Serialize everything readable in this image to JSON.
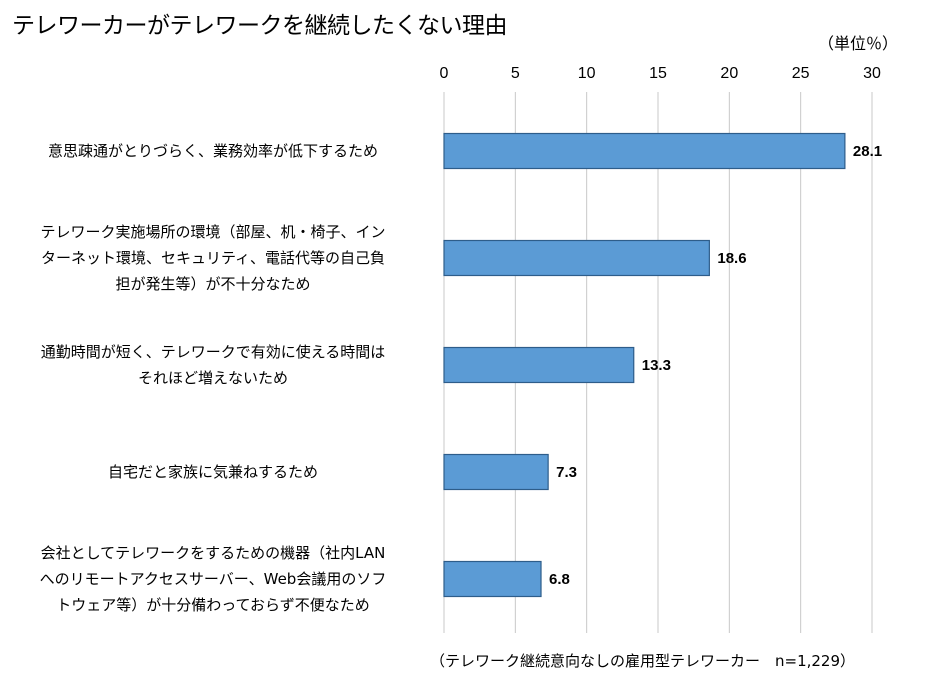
{
  "chart_data": {
    "type": "bar",
    "orientation": "horizontal",
    "title": "テレワーカーがテレワークを継続したくない理由",
    "unit_label": "（単位％）",
    "note": "（テレワーク継続意向なしの雇用型テレワーカー　n=1,229）",
    "xlim": [
      0,
      30
    ],
    "xticks": [
      "0",
      "5",
      "10",
      "15",
      "20",
      "25",
      "30"
    ],
    "grid": true,
    "bar_color": "#5B9BD5",
    "bar_border_color": "#2E5D8A",
    "categories": [
      "意思疎通がとりづらく、業務効率が低下するため",
      "テレワーク実施場所の環境（部屋、机・椅子、インターネット環境、セキュリティ、電話代等の自己負担が発生等）が不十分なため",
      "通勤時間が短く、テレワークで有効に使える時間はそれほど増えないため",
      "自宅だと家族に気兼ねするため",
      "会社としてテレワークをするための機器（社内LANへのリモートアクセスサーバー、Web会議用のソフトウェア等）が十分備わっておらず不便なため"
    ],
    "category_lines": [
      [
        "意思疎通がとりづらく、業務効率が低下するため"
      ],
      [
        "テレワーク実施場所の環境（部屋、机・椅子、イン",
        "ターネット環境、セキュリティ、電話代等の自己負",
        "担が発生等）が不十分なため"
      ],
      [
        "通勤時間が短く、テレワークで有効に使える時間は",
        "それほど増えないため"
      ],
      [
        "自宅だと家族に気兼ねするため"
      ],
      [
        "会社としてテレワークをするための機器（社内LAN",
        "へのリモートアクセスサーバー、Web会議用のソフ",
        "トウェア等）が十分備わっておらず不便なため"
      ]
    ],
    "values": [
      28.1,
      18.6,
      13.3,
      7.3,
      6.8
    ],
    "value_labels": [
      "28.1",
      "18.6",
      "13.3",
      "7.3",
      "6.8"
    ]
  }
}
